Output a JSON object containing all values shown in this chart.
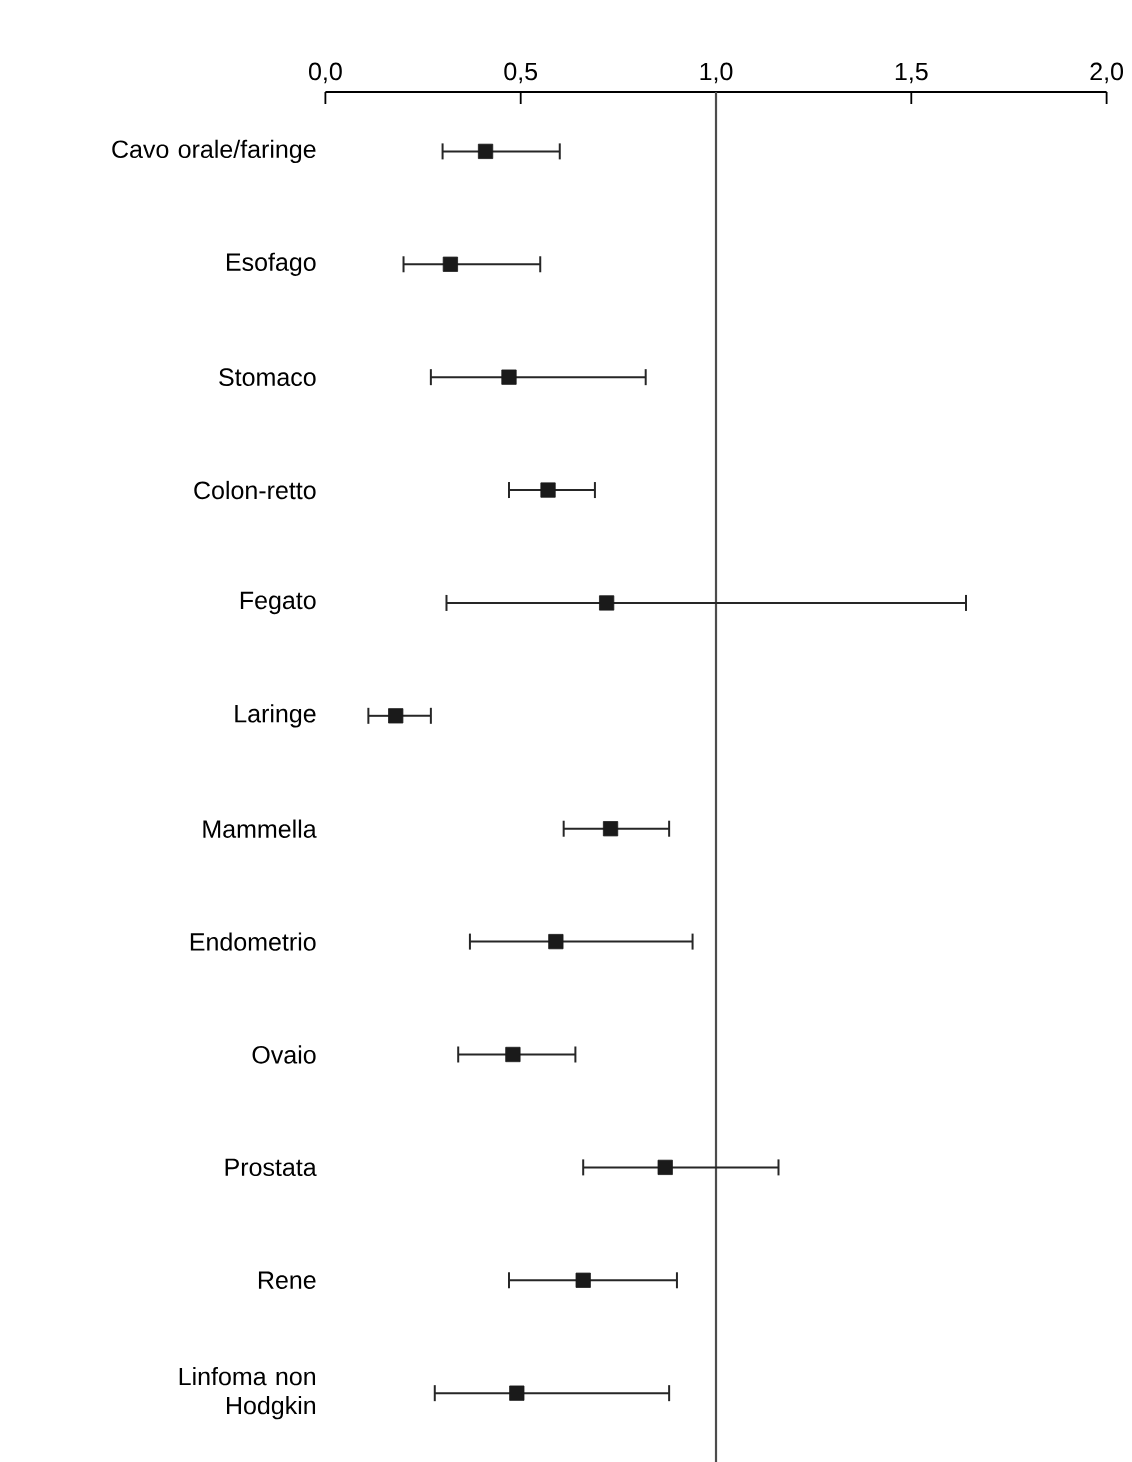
{
  "chart_data": {
    "type": "scatter",
    "orientation": "horizontal",
    "marker": "square",
    "color": "#1a1a1a",
    "categories": [
      "Cavo orale/faringe",
      "Esofago",
      "Stomaco",
      "Colon-retto",
      "Fegato",
      "Laringe",
      "Mammella",
      "Endometrio",
      "Ovaio",
      "Prostata",
      "Rene",
      "Linfoma non Hodgkin"
    ],
    "values": [
      0.41,
      0.32,
      0.47,
      0.57,
      0.72,
      0.18,
      0.73,
      0.59,
      0.48,
      0.87,
      0.66,
      0.49
    ],
    "errors": [
      [
        0.3,
        0.6
      ],
      [
        0.2,
        0.55
      ],
      [
        0.27,
        0.82
      ],
      [
        0.47,
        0.69
      ],
      [
        0.31,
        1.64
      ],
      [
        0.11,
        0.27
      ],
      [
        0.61,
        0.88
      ],
      [
        0.37,
        0.94
      ],
      [
        0.34,
        0.64
      ],
      [
        0.66,
        1.16
      ],
      [
        0.47,
        0.9
      ],
      [
        0.28,
        0.88
      ]
    ],
    "xlim": [
      0,
      2
    ],
    "xticks": [
      {
        "value": 0,
        "label": "0,0"
      },
      {
        "value": 0.5,
        "label": "0,5"
      },
      {
        "value": 1,
        "label": "1,0"
      },
      {
        "value": 1.5,
        "label": "1,5"
      },
      {
        "value": 2,
        "label": "2,0"
      }
    ],
    "ref_lines": [
      {
        "axis": "x",
        "value": 1
      }
    ]
  }
}
